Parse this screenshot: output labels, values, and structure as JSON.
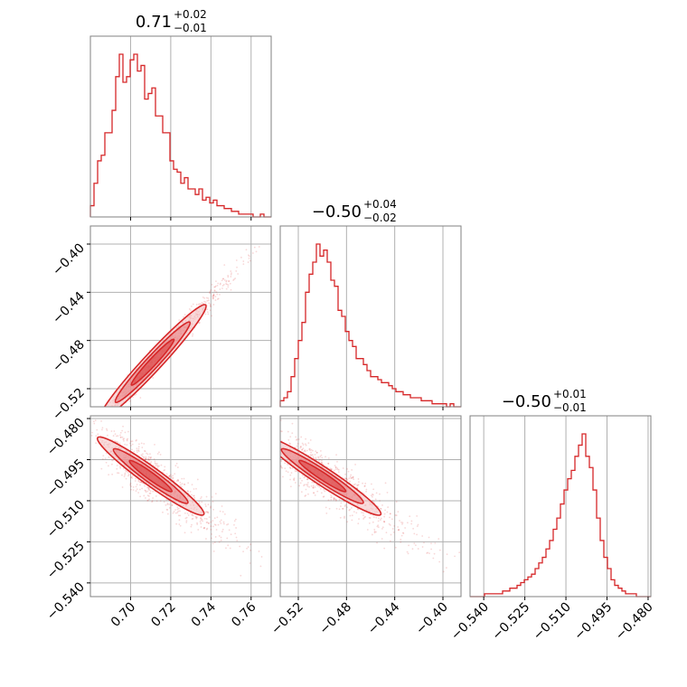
{
  "colors": {
    "series": "#d62728",
    "fill_light": "#f4c2c3",
    "fill_dark": "#e8787a",
    "grid": "#b0b0b0",
    "frame": "#808080"
  },
  "chart_data": {
    "type": "corner",
    "parameters": [
      {
        "title": {
          "median": "0.71",
          "plus": "+0.02",
          "minus": "−0.01"
        },
        "range": [
          0.68,
          0.77
        ],
        "ticks": [
          0.7,
          0.72,
          0.74,
          0.76
        ],
        "tick_labels": [
          "0.70",
          "0.72",
          "0.74",
          "0.76"
        ],
        "hist_counts": [
          4,
          12,
          20,
          22,
          30,
          30,
          38,
          50,
          58,
          48,
          50,
          56,
          58,
          52,
          54,
          42,
          44,
          46,
          36,
          36,
          30,
          30,
          20,
          17,
          16,
          12,
          14,
          10,
          10,
          8,
          10,
          6,
          7,
          5,
          6,
          4,
          4,
          3,
          3,
          2,
          2,
          1,
          1,
          1,
          1,
          0,
          0,
          1,
          0,
          0
        ]
      },
      {
        "title": {
          "median": "−0.50",
          "plus": "+0.04",
          "minus": "−0.02"
        },
        "range": [
          -0.535,
          -0.385
        ],
        "ticks": [
          -0.52,
          -0.48,
          -0.44,
          -0.4
        ],
        "tick_labels": [
          "−0.52",
          "−0.48",
          "−0.44",
          "−0.40"
        ],
        "hist_counts": [
          2,
          3,
          5,
          10,
          16,
          22,
          28,
          38,
          44,
          48,
          54,
          50,
          52,
          48,
          42,
          40,
          32,
          30,
          25,
          22,
          20,
          16,
          16,
          14,
          12,
          10,
          10,
          9,
          8,
          8,
          7,
          6,
          5,
          5,
          4,
          4,
          3,
          3,
          3,
          2,
          2,
          2,
          1,
          1,
          1,
          1,
          0,
          1,
          0,
          0
        ]
      },
      {
        "title": {
          "median": "−0.50",
          "plus": "+0.01",
          "minus": "−0.01"
        },
        "range": [
          -0.545,
          -0.479
        ],
        "ticks": [
          -0.54,
          -0.525,
          -0.51,
          -0.495,
          -0.48
        ],
        "tick_labels": [
          "−0.540",
          "−0.525",
          "−0.510",
          "−0.495",
          "−0.480"
        ],
        "hist_counts": [
          0,
          0,
          0,
          0,
          1,
          1,
          1,
          1,
          1,
          2,
          2,
          3,
          3,
          4,
          5,
          6,
          7,
          8,
          10,
          12,
          14,
          17,
          20,
          24,
          28,
          33,
          38,
          42,
          45,
          50,
          54,
          58,
          50,
          46,
          38,
          28,
          20,
          14,
          10,
          6,
          4,
          3,
          2,
          1,
          1,
          1,
          0,
          0,
          0,
          0
        ]
      }
    ],
    "pairs": [
      {
        "x": 0,
        "y": 1,
        "mean": [
          0.711,
          -0.498
        ],
        "std": [
          0.012,
          0.022
        ],
        "corr": 0.98
      },
      {
        "x": 0,
        "y": 2,
        "mean": [
          0.71,
          -0.501
        ],
        "std": [
          0.012,
          0.0075
        ],
        "corr": -0.85
      },
      {
        "x": 1,
        "y": 2,
        "mean": [
          -0.5,
          -0.501
        ],
        "std": [
          0.022,
          0.0075
        ],
        "corr": -0.85
      }
    ],
    "grid": true
  }
}
